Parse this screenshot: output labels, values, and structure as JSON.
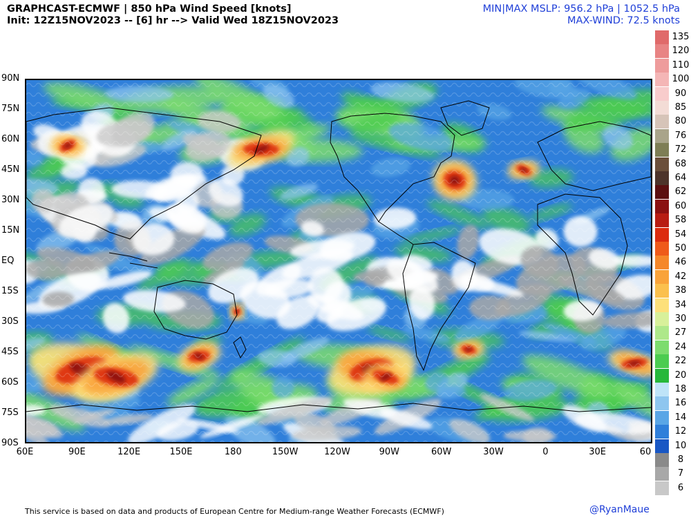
{
  "header": {
    "title_left": "GRAPHCAST-ECMWF | 850 hPa Wind Speed [knots]",
    "subtitle_left": "Init: 12Z15NOV2023 -- [6] hr --> Valid Wed 18Z15NOV2023",
    "title_right": "MIN|MAX MSLP: 956.2 hPa | 1052.5 hPa",
    "subtitle_right": "MAX-WIND: 72.5 knots"
  },
  "map": {
    "lat_labels": [
      "90N",
      "75N",
      "60N",
      "45N",
      "30N",
      "15N",
      "EQ",
      "15S",
      "30S",
      "45S",
      "60S",
      "75S",
      "90S"
    ],
    "lon_labels": [
      "60E",
      "90E",
      "120E",
      "150E",
      "180",
      "150W",
      "120W",
      "90W",
      "60W",
      "30W",
      "0",
      "30E",
      "60"
    ]
  },
  "colorbar": {
    "levels": [
      {
        "label": "135",
        "color": "#e06a6a"
      },
      {
        "label": "120",
        "color": "#e88484"
      },
      {
        "label": "110",
        "color": "#ee9c9c"
      },
      {
        "label": "100",
        "color": "#f4b6b6"
      },
      {
        "label": "90",
        "color": "#f8cccc"
      },
      {
        "label": "85",
        "color": "#f3dcd6"
      },
      {
        "label": "80",
        "color": "#d6c4b8"
      },
      {
        "label": "76",
        "color": "#a9a48a"
      },
      {
        "label": "72",
        "color": "#7e7e55"
      },
      {
        "label": "68",
        "color": "#6b4f3a"
      },
      {
        "label": "64",
        "color": "#4e342a"
      },
      {
        "label": "62",
        "color": "#5c1010"
      },
      {
        "label": "60",
        "color": "#8b1111"
      },
      {
        "label": "58",
        "color": "#b81d13"
      },
      {
        "label": "54",
        "color": "#dc2c0f"
      },
      {
        "label": "50",
        "color": "#ef5a1a"
      },
      {
        "label": "46",
        "color": "#f5872a"
      },
      {
        "label": "42",
        "color": "#f9a33a"
      },
      {
        "label": "38",
        "color": "#fbc04d"
      },
      {
        "label": "34",
        "color": "#fde07a"
      },
      {
        "label": "30",
        "color": "#d8f09a"
      },
      {
        "label": "27",
        "color": "#aee88a"
      },
      {
        "label": "24",
        "color": "#7ddc6e"
      },
      {
        "label": "22",
        "color": "#4ccc50"
      },
      {
        "label": "20",
        "color": "#27b83a"
      },
      {
        "label": "18",
        "color": "#bfe4f8"
      },
      {
        "label": "16",
        "color": "#8ec6ef"
      },
      {
        "label": "14",
        "color": "#5aa6e6"
      },
      {
        "label": "12",
        "color": "#2f7fda"
      },
      {
        "label": "10",
        "color": "#1957c4"
      },
      {
        "label": "8",
        "color": "#8a8a8a"
      },
      {
        "label": "7",
        "color": "#a8a8a8"
      },
      {
        "label": "6",
        "color": "#c8c8c8"
      }
    ]
  },
  "footer": {
    "disclaimer": "This service is based on data and products of European Centre for Medium-range Weather Forecasts (ECMWF)",
    "credit": "@RyanMaue"
  },
  "colors": {
    "credit": "#1f3fd8",
    "ocean_base": "#2f7fda",
    "calm": "#ffffff",
    "land_outline": "#000000"
  }
}
